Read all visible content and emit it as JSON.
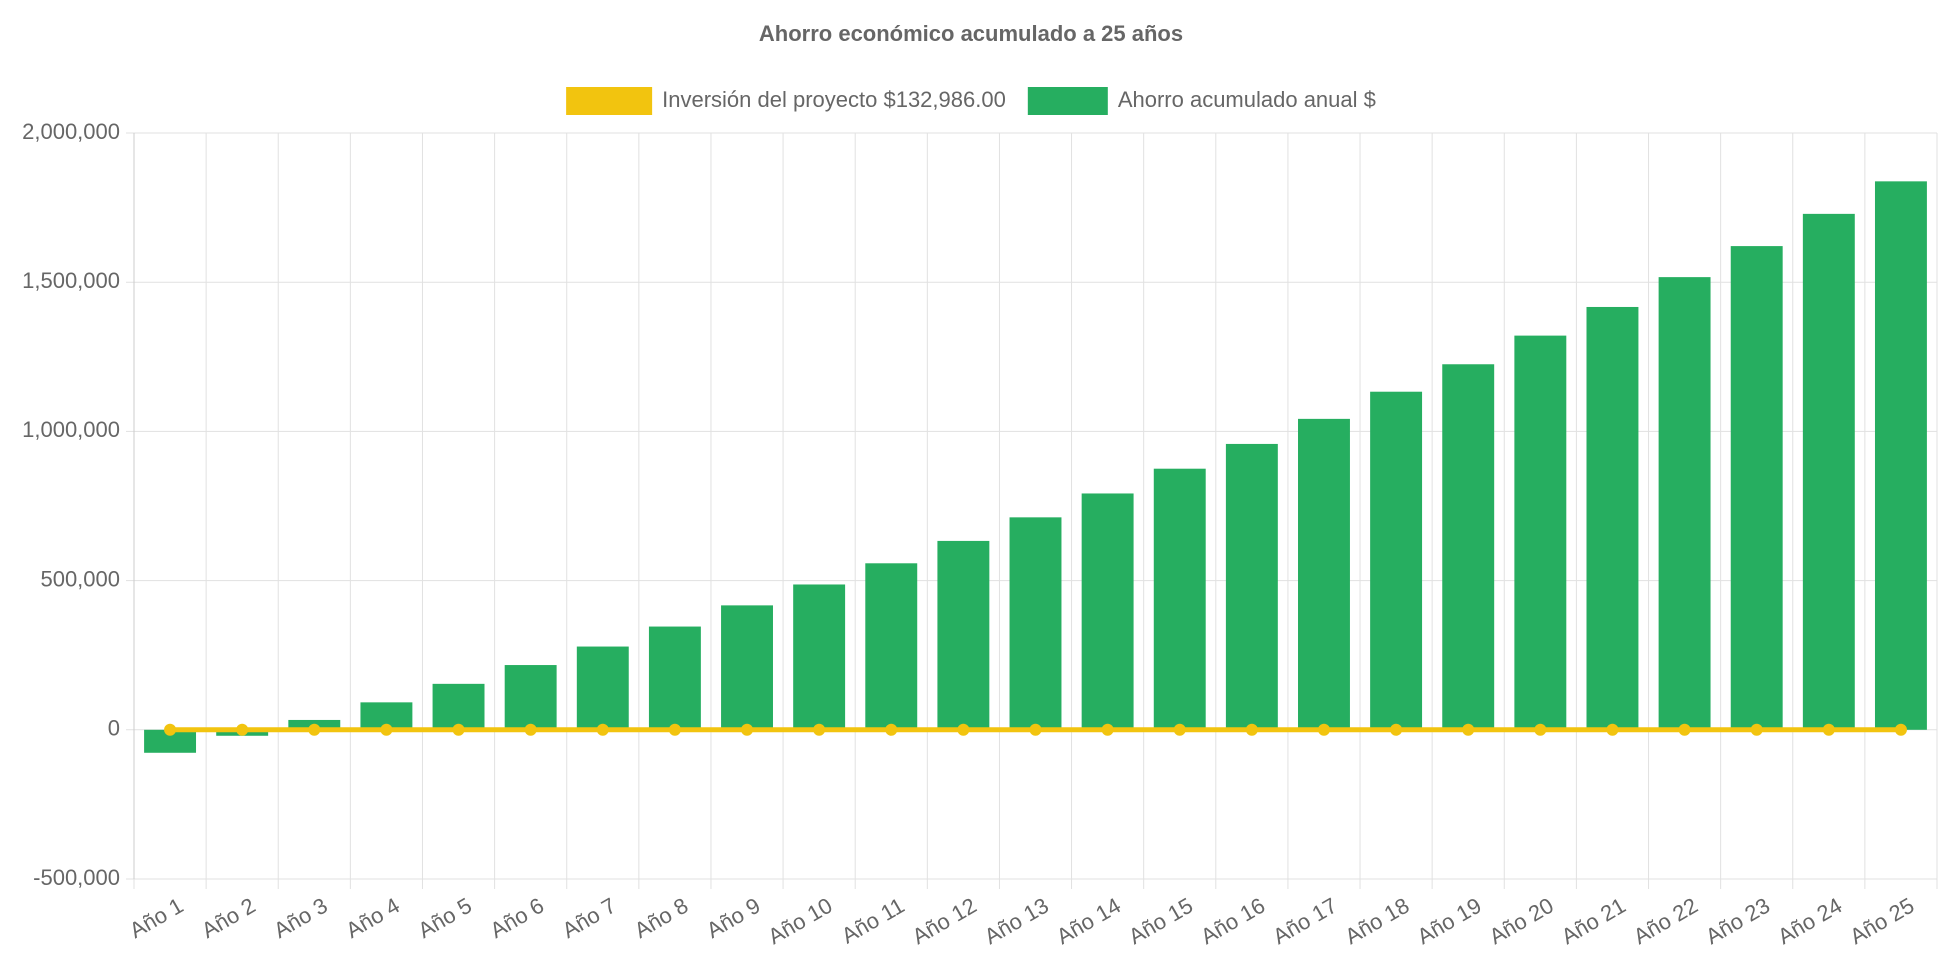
{
  "chart_data": {
    "type": "bar",
    "title": "Ahorro económico acumulado a 25 años",
    "categories": [
      "Año 1",
      "Año 2",
      "Año 3",
      "Año 4",
      "Año 5",
      "Año 6",
      "Año 7",
      "Año 8",
      "Año 9",
      "Año 10",
      "Año 11",
      "Año 12",
      "Año 13",
      "Año 14",
      "Año 15",
      "Año 16",
      "Año 17",
      "Año 18",
      "Año 19",
      "Año 20",
      "Año 21",
      "Año 22",
      "Año 23",
      "Año 24",
      "Año 25"
    ],
    "series": [
      {
        "name": "Inversión del proyecto $132,986.00",
        "type": "line",
        "color": "#f2c40f",
        "values": [
          0,
          0,
          0,
          0,
          0,
          0,
          0,
          0,
          0,
          0,
          0,
          0,
          0,
          0,
          0,
          0,
          0,
          0,
          0,
          0,
          0,
          0,
          0,
          0,
          0
        ]
      },
      {
        "name": "Ahorro acumulado anual $",
        "type": "bar",
        "color": "#26ae60",
        "values": [
          -77000,
          -20000,
          33000,
          92000,
          154000,
          217000,
          279000,
          346000,
          417000,
          487000,
          558000,
          633000,
          712000,
          792000,
          875000,
          958000,
          1042000,
          1133000,
          1225000,
          1321000,
          1417000,
          1517000,
          1621000,
          1729000,
          1838000
        ]
      }
    ],
    "ylim": [
      -500000,
      2000000
    ],
    "yticks": [
      {
        "value": -500000,
        "label": "-500,000"
      },
      0,
      {
        "value": 500000,
        "label": "500,000"
      },
      {
        "value": 1000000,
        "label": "1,000,000"
      },
      {
        "value": 1500000,
        "label": "1,500,000"
      },
      {
        "value": 2000000,
        "label": "2,000,000"
      }
    ],
    "grid": true
  }
}
